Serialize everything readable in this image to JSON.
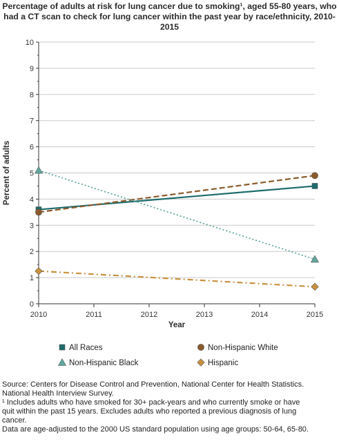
{
  "title_lines": [
    "Percentage of adults at risk for lung cancer due to smoking¹, aged 55-80 years, who",
    "had a CT scan to check for lung cancer within the past year by race/ethnicity, 2010-",
    "2015"
  ],
  "footnotes": [
    "Source: Centers for Disease Control and Prevention, National Center for Health Statistics.",
    "National Health Interview Survey.",
    "¹ Includes adults who have smoked for 30+ pack-years and who currently smoke or have",
    "quit within the past 15 years. Excludes adults who reported a previous diagnosis of lung",
    "cancer.",
    "Data are age-adjusted to the 2000 US standard population using age groups: 50-64, 65-80."
  ],
  "chart_data": {
    "type": "line",
    "xlabel": "Year",
    "ylabel": "Percent of adults",
    "xlim": [
      2010,
      2015
    ],
    "ylim": [
      0,
      10
    ],
    "x_ticks": [
      2010,
      2011,
      2012,
      2013,
      2014,
      2015
    ],
    "y_ticks": [
      0,
      1,
      2,
      3,
      4,
      5,
      6,
      7,
      8,
      9,
      10
    ],
    "grid": true,
    "legend_position": "bottom",
    "series": [
      {
        "name": "All Races",
        "x": [
          2010,
          2015
        ],
        "values": [
          3.6,
          4.5
        ],
        "color": "#1d6b6b",
        "marker": "square",
        "line_style": "solid"
      },
      {
        "name": "Non-Hispanic White",
        "x": [
          2010,
          2015
        ],
        "values": [
          3.5,
          4.9
        ],
        "color": "#8b5a2b",
        "marker": "circle",
        "line_style": "dashed"
      },
      {
        "name": "Non-Hispanic Black",
        "x": [
          2010,
          2015
        ],
        "values": [
          5.1,
          1.7
        ],
        "color": "#5fa89e",
        "marker": "triangle",
        "line_style": "dotted"
      },
      {
        "name": "Hispanic",
        "x": [
          2010,
          2015
        ],
        "values": [
          1.25,
          0.65
        ],
        "color": "#c9913e",
        "marker": "diamond",
        "line_style": "dashdot"
      }
    ]
  }
}
